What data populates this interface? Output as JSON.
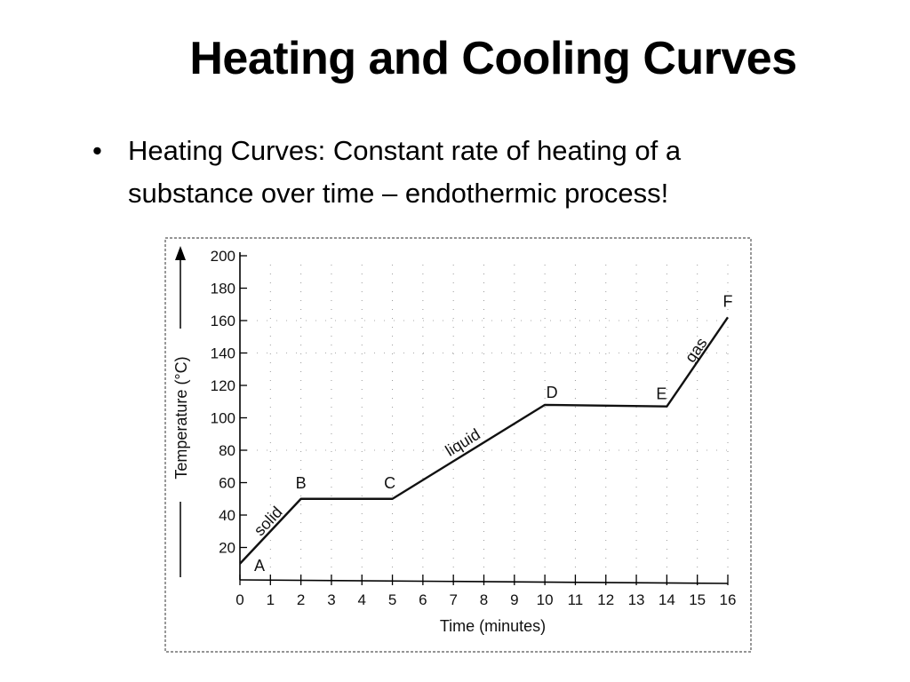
{
  "slide": {
    "title": "Heating and Cooling Curves",
    "bullet_symbol": "•",
    "bullet_line_1": "Heating Curves: Constant rate of heating of a",
    "bullet_line_2": "substance over time – endothermic process!"
  },
  "chart_data": {
    "type": "line",
    "title": "",
    "xlabel": "Time (minutes)",
    "ylabel": "Temperature (°C)",
    "xlim": [
      0,
      16
    ],
    "ylim": [
      0,
      200
    ],
    "x_ticks": [
      0,
      1,
      2,
      3,
      4,
      5,
      6,
      7,
      8,
      9,
      10,
      11,
      12,
      13,
      14,
      15,
      16
    ],
    "y_ticks": [
      20,
      40,
      60,
      80,
      100,
      120,
      140,
      160,
      180,
      200
    ],
    "grid": "dotted",
    "series": [
      {
        "name": "heating curve",
        "x": [
          0,
          2,
          5,
          10,
          14,
          16
        ],
        "y": [
          10,
          50,
          50,
          108,
          107,
          162
        ]
      }
    ],
    "points": [
      {
        "label": "A",
        "x": 0,
        "y": 10
      },
      {
        "label": "B",
        "x": 2,
        "y": 50
      },
      {
        "label": "C",
        "x": 5,
        "y": 50
      },
      {
        "label": "D",
        "x": 10,
        "y": 108
      },
      {
        "label": "E",
        "x": 14,
        "y": 107
      },
      {
        "label": "F",
        "x": 16,
        "y": 162
      }
    ],
    "segment_labels": [
      {
        "text": "solid",
        "x": 1.05,
        "y": 34
      },
      {
        "text": "liquid",
        "x": 7.4,
        "y": 82
      },
      {
        "text": "gas",
        "x": 15.1,
        "y": 140
      }
    ]
  }
}
